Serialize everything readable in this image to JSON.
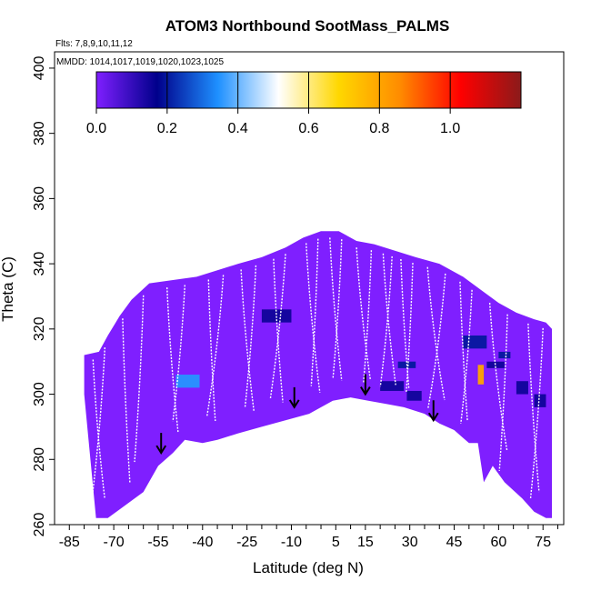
{
  "chart_data": {
    "type": "heatmap",
    "title": "ATOM3 Northbound SootMass_PALMS",
    "flights_label": "Flts: 7,8,9,10,11,12",
    "mmdd_label": "MMDD: 1014,1017,1019,1020,1023,1025",
    "xlabel": "Latitude (deg N)",
    "ylabel": "Theta (C)",
    "xlim": [
      -90,
      82
    ],
    "ylim": [
      260,
      405
    ],
    "x_ticks": [
      -85,
      -70,
      -55,
      -40,
      -25,
      -10,
      5,
      15,
      30,
      45,
      60,
      75
    ],
    "y_ticks": [
      260,
      280,
      300,
      320,
      340,
      360,
      380,
      400
    ],
    "colorbar": {
      "range": [
        0,
        1.2
      ],
      "ticks": [
        "0.0",
        "0.2",
        "0.4",
        "0.6",
        "0.8",
        "1.0"
      ],
      "stops": [
        "#7f1fff",
        "#00008b",
        "#1e90ff",
        "#ffffff",
        "#ffd700",
        "#ff8c00",
        "#ff0000",
        "#8b1a1a"
      ]
    },
    "base_color": "#7f1fff",
    "upper_envelope": [
      [
        -80,
        312
      ],
      [
        -75,
        313
      ],
      [
        -72,
        318
      ],
      [
        -68,
        324
      ],
      [
        -64,
        329
      ],
      [
        -58,
        334
      ],
      [
        -50,
        335
      ],
      [
        -42,
        336
      ],
      [
        -35,
        338
      ],
      [
        -28,
        340
      ],
      [
        -20,
        342
      ],
      [
        -12,
        345
      ],
      [
        -6,
        348
      ],
      [
        0,
        350
      ],
      [
        6,
        350
      ],
      [
        12,
        347
      ],
      [
        18,
        346
      ],
      [
        25,
        344
      ],
      [
        32,
        342
      ],
      [
        40,
        340
      ],
      [
        48,
        336
      ],
      [
        54,
        332
      ],
      [
        60,
        328
      ],
      [
        66,
        325
      ],
      [
        72,
        323
      ],
      [
        76,
        322
      ],
      [
        78,
        320
      ]
    ],
    "lower_envelope": [
      [
        -80,
        300
      ],
      [
        -76,
        262
      ],
      [
        -72,
        262
      ],
      [
        -66,
        266
      ],
      [
        -60,
        270
      ],
      [
        -55,
        278
      ],
      [
        -50,
        282
      ],
      [
        -46,
        286
      ],
      [
        -40,
        285
      ],
      [
        -35,
        286
      ],
      [
        -28,
        288
      ],
      [
        -20,
        290
      ],
      [
        -12,
        292
      ],
      [
        -4,
        294
      ],
      [
        4,
        298
      ],
      [
        10,
        299
      ],
      [
        16,
        298
      ],
      [
        22,
        297
      ],
      [
        28,
        296
      ],
      [
        35,
        294
      ],
      [
        40,
        291
      ],
      [
        45,
        289
      ],
      [
        50,
        285
      ],
      [
        53,
        285
      ],
      [
        55,
        273
      ],
      [
        58,
        278
      ],
      [
        62,
        273
      ],
      [
        68,
        268
      ],
      [
        72,
        264
      ],
      [
        76,
        262
      ],
      [
        78,
        262
      ]
    ],
    "hotspots": [
      {
        "x": [
          -49,
          -41
        ],
        "y": [
          302,
          306
        ],
        "value": 0.35
      },
      {
        "x": [
          -20,
          -10
        ],
        "y": [
          322,
          326
        ],
        "value": 0.15
      },
      {
        "x": [
          20,
          28
        ],
        "y": [
          301,
          304
        ],
        "value": 0.15
      },
      {
        "x": [
          26,
          32
        ],
        "y": [
          308,
          310
        ],
        "value": 0.2
      },
      {
        "x": [
          29,
          34
        ],
        "y": [
          298,
          301
        ],
        "value": 0.15
      },
      {
        "x": [
          48,
          56
        ],
        "y": [
          314,
          318
        ],
        "value": 0.2
      },
      {
        "x": [
          53,
          55
        ],
        "y": [
          303,
          309
        ],
        "value": 0.8
      },
      {
        "x": [
          60,
          64
        ],
        "y": [
          311,
          313
        ],
        "value": 0.2
      },
      {
        "x": [
          66,
          70
        ],
        "y": [
          300,
          304
        ],
        "value": 0.15
      },
      {
        "x": [
          72,
          76
        ],
        "y": [
          296,
          300
        ],
        "value": 0.15
      },
      {
        "x": [
          56,
          62
        ],
        "y": [
          308,
          310
        ],
        "value": 0.15
      }
    ],
    "arrows": [
      [
        -54,
        282
      ],
      [
        -9,
        296
      ],
      [
        15,
        300
      ],
      [
        38,
        292
      ]
    ]
  }
}
